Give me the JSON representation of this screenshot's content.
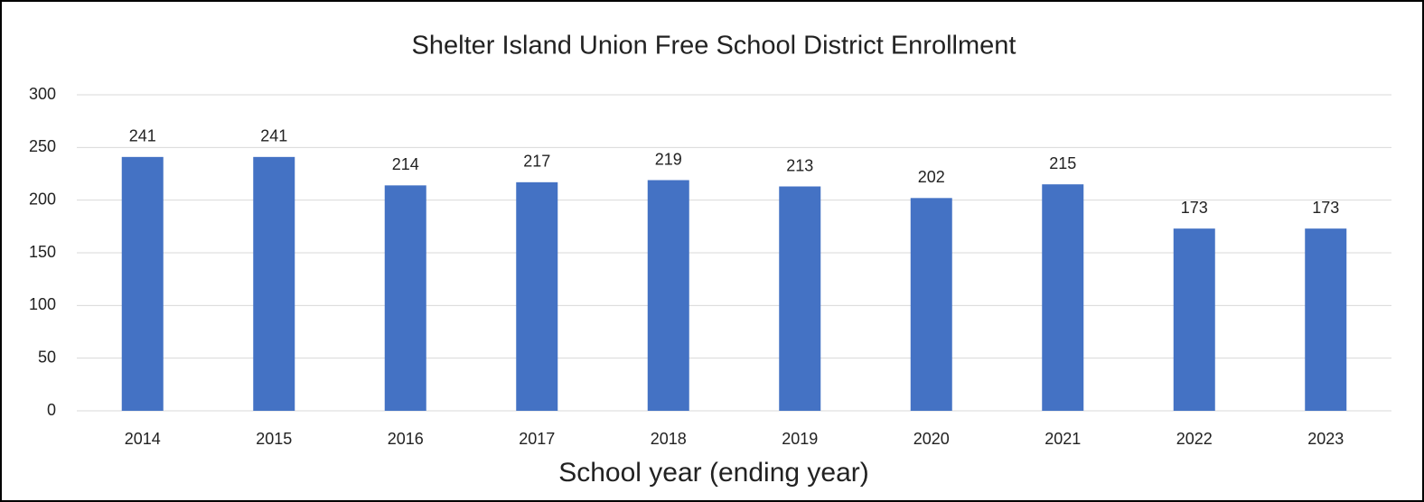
{
  "chart_data": {
    "type": "bar",
    "title": "Shelter Island Union Free School District Enrollment",
    "x_label": "School year (ending year)",
    "categories": [
      "2014",
      "2015",
      "2016",
      "2017",
      "2018",
      "2019",
      "2020",
      "2021",
      "2022",
      "2023"
    ],
    "values": [
      241,
      241,
      214,
      217,
      219,
      213,
      202,
      215,
      173,
      173
    ],
    "color": "#4472c4",
    "ylim": [
      0,
      300
    ],
    "yticks": [
      0,
      50,
      100,
      150,
      200,
      250,
      300
    ],
    "grid": true
  }
}
